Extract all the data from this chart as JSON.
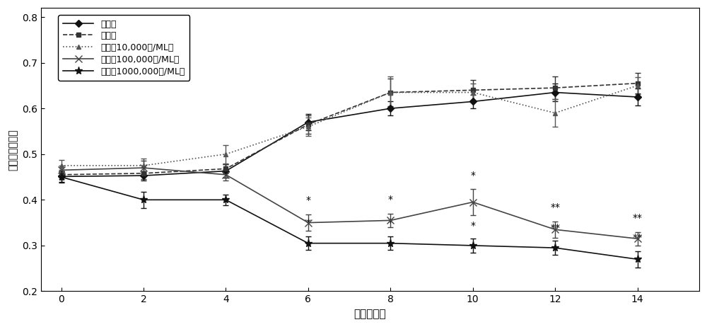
{
  "x": [
    0,
    2,
    4,
    6,
    8,
    10,
    12,
    14
  ],
  "series_order": [
    "空白组",
    "对照组",
    "菌浓（10,000个/ML）",
    "菌浓（100,000个/ML）",
    "菌浓（1000,000个/ML）"
  ],
  "series": {
    "空白组": {
      "y": [
        0.451,
        0.453,
        0.463,
        0.57,
        0.6,
        0.615,
        0.635,
        0.625
      ],
      "yerr": [
        0.012,
        0.01,
        0.015,
        0.018,
        0.015,
        0.015,
        0.02,
        0.018
      ],
      "marker": "D",
      "linestyle": "-",
      "color": "#111111",
      "markersize": 5
    },
    "对照组": {
      "y": [
        0.455,
        0.458,
        0.468,
        0.565,
        0.635,
        0.64,
        0.645,
        0.655
      ],
      "yerr": [
        0.01,
        0.012,
        0.01,
        0.02,
        0.03,
        0.022,
        0.025,
        0.022
      ],
      "marker": "s",
      "linestyle": "--",
      "color": "#333333",
      "markersize": 5
    },
    "菌浓（10,000个/ML）": {
      "y": [
        0.475,
        0.475,
        0.5,
        0.56,
        0.635,
        0.635,
        0.59,
        0.65
      ],
      "yerr": [
        0.012,
        0.015,
        0.02,
        0.02,
        0.035,
        0.02,
        0.03,
        0.018
      ],
      "marker": "^",
      "linestyle": ":",
      "color": "#555555",
      "markersize": 5
    },
    "菌浓（100,000个/ML）": {
      "y": [
        0.465,
        0.47,
        0.455,
        0.35,
        0.355,
        0.395,
        0.335,
        0.315
      ],
      "yerr": [
        0.01,
        0.015,
        0.012,
        0.018,
        0.015,
        0.028,
        0.018,
        0.015
      ],
      "marker": "x",
      "linestyle": "-",
      "color": "#444444",
      "markersize": 7
    },
    "菌浓（1000,000个/ML）": {
      "y": [
        0.45,
        0.4,
        0.4,
        0.305,
        0.305,
        0.3,
        0.295,
        0.27
      ],
      "yerr": [
        0.012,
        0.018,
        0.012,
        0.015,
        0.015,
        0.015,
        0.015,
        0.018
      ],
      "marker": "*",
      "linestyle": "-",
      "color": "#111111",
      "markersize": 8
    }
  },
  "legend_labels": [
    "空白组",
    "对照组",
    "菌浓（10,000个/ML）",
    "菌浓（100,000个/ML）",
    "菌浓（1000,000个/ML）"
  ],
  "xlabel": "时间（天）",
  "ylabel": "光合效率相对值",
  "xlim": [
    -0.5,
    15.5
  ],
  "ylim": [
    0.2,
    0.82
  ],
  "yticks": [
    0.2,
    0.3,
    0.4,
    0.5,
    0.6,
    0.7,
    0.8
  ],
  "xticks": [
    0,
    2,
    4,
    6,
    8,
    10,
    12,
    14
  ],
  "annot_single": [
    6,
    8,
    10
  ],
  "annot_double": [
    12,
    14
  ]
}
